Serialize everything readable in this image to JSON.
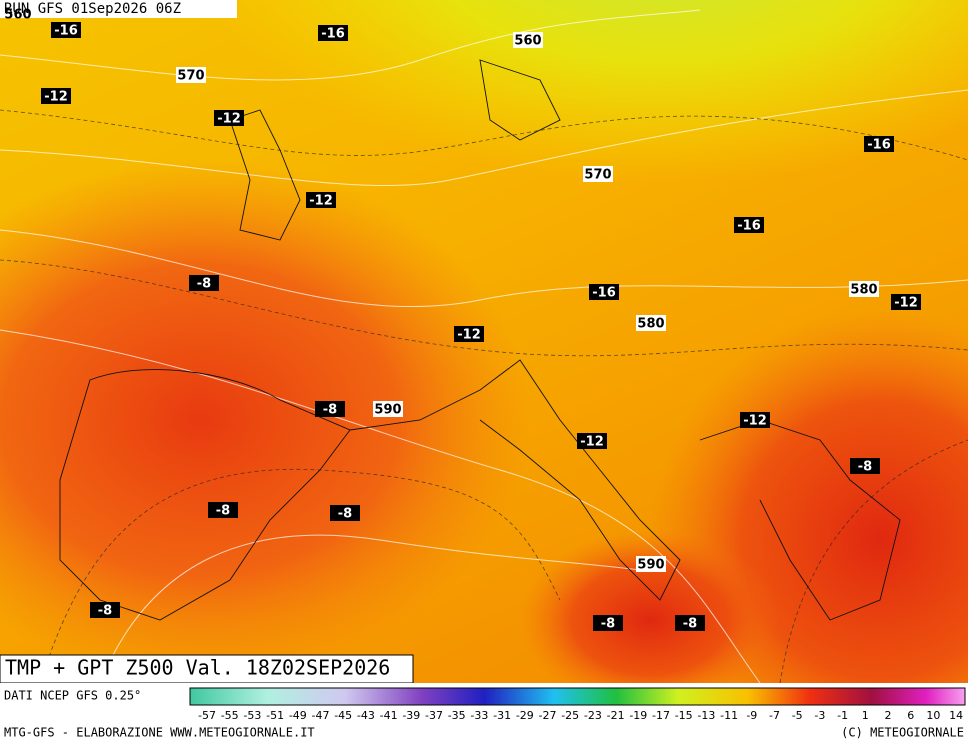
{
  "header": {
    "run": "RUN GFS 01Sep2026 06Z"
  },
  "title": "TMP + GPT Z500 Val. 18Z02SEP2026",
  "labels": {
    "temperature": [
      -16,
      -16,
      -12,
      -12,
      -16,
      -12,
      -16,
      -8,
      -16,
      -12,
      -12,
      -8,
      -12,
      -12,
      -8,
      -8,
      -8,
      -8,
      -8,
      -8
    ],
    "geopotential": [
      560,
      560,
      570,
      570,
      580,
      580,
      590,
      590
    ]
  },
  "footer": {
    "source": "DATI NCEP GFS 0.25°",
    "credit": "MTG-GFS - ELABORAZIONE WWW.METEOGIORNALE.IT",
    "copyright": "(C) METEOGIORNALE"
  },
  "scale": {
    "ticks": [
      -57,
      -55,
      -53,
      -51,
      -49,
      -47,
      -45,
      -43,
      -41,
      -39,
      -37,
      -35,
      -33,
      -31,
      -29,
      -27,
      -25,
      -23,
      -21,
      -19,
      -17,
      -15,
      -13,
      -11,
      -9,
      -7,
      -5,
      -3,
      -1,
      1,
      2,
      6,
      10,
      14
    ]
  }
}
